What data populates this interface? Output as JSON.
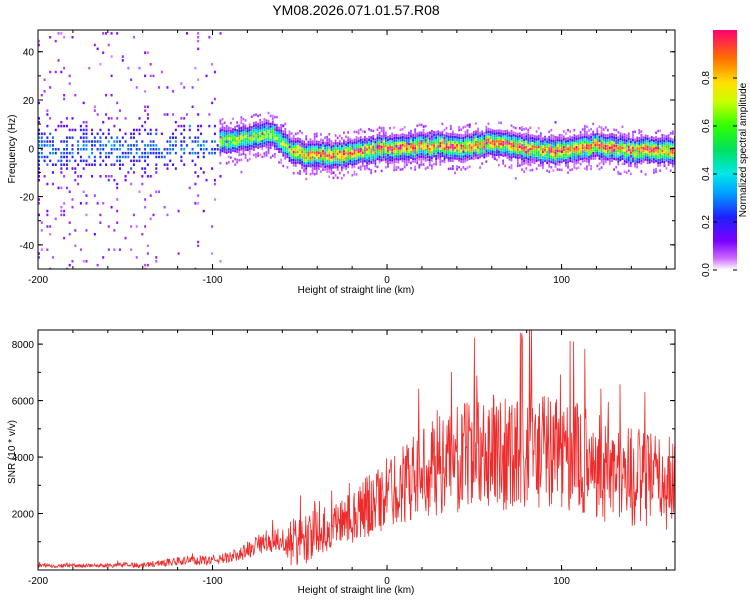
{
  "title": "YM08.2026.071.01.57.R08",
  "chart_data": [
    {
      "type": "heatmap",
      "name": "spectrogram",
      "xlabel": "Height of straight line (km)",
      "ylabel": "Frequency (Hz)",
      "xlim": [
        -200,
        165
      ],
      "ylim": [
        -50,
        49
      ],
      "xticks": [
        -200,
        -100,
        0,
        100
      ],
      "yticks": [
        -40,
        -20,
        0,
        20,
        40
      ],
      "colorbar": {
        "label": "Normalized spectral amplitude",
        "range": [
          0.0,
          1.0
        ],
        "ticks": [
          0.0,
          0.2,
          0.4,
          0.6,
          0.8
        ]
      },
      "ridge": {
        "description": "dominant frequency track vs height",
        "x": [
          -100,
          -95,
          -85,
          -75,
          -65,
          -60,
          -55,
          -50,
          -45,
          -40,
          -30,
          -20,
          -10,
          0,
          10,
          20,
          30,
          40,
          50,
          60,
          70,
          80,
          90,
          100,
          110,
          120,
          130,
          140,
          150,
          160,
          165
        ],
        "frequency": [
          1,
          3,
          4,
          5,
          6,
          2,
          -1,
          -2,
          -3,
          -3,
          -3,
          -2,
          -1,
          0,
          0,
          1,
          1,
          0,
          1,
          2,
          1,
          0,
          -1,
          -1,
          0,
          1,
          0,
          -1,
          -1,
          -1,
          -1
        ]
      }
    },
    {
      "type": "line",
      "name": "snr",
      "xlabel": "Height of straight line (km)",
      "ylabel": "SNR (10 * v/v)",
      "xlim": [
        -200,
        165
      ],
      "ylim": [
        0,
        8500
      ],
      "xticks": [
        -200,
        -100,
        0,
        100
      ],
      "yticks": [
        2000,
        4000,
        6000,
        8000
      ],
      "color": "#ee2a2a",
      "envelope": {
        "x": [
          -200,
          -170,
          -140,
          -120,
          -100,
          -90,
          -80,
          -70,
          -60,
          -55,
          -50,
          -40,
          -30,
          -20,
          -10,
          0,
          10,
          20,
          30,
          40,
          50,
          60,
          70,
          80,
          90,
          100,
          110,
          120,
          130,
          140,
          150,
          160,
          165
        ],
        "mean": [
          150,
          150,
          180,
          300,
          350,
          450,
          700,
          1000,
          1100,
          700,
          900,
          1300,
          1600,
          1900,
          2300,
          2700,
          3100,
          3400,
          3700,
          3900,
          4100,
          4300,
          4200,
          4300,
          4200,
          4100,
          3900,
          3700,
          3500,
          3300,
          3200,
          3100,
          3000
        ],
        "spread": [
          100,
          100,
          150,
          250,
          250,
          300,
          500,
          600,
          700,
          900,
          1400,
          1200,
          1300,
          1500,
          1800,
          2000,
          2200,
          2500,
          2700,
          2900,
          3100,
          3200,
          3300,
          3400,
          3300,
          3200,
          3100,
          3000,
          2900,
          2800,
          2700,
          2600,
          2600
        ]
      }
    }
  ]
}
